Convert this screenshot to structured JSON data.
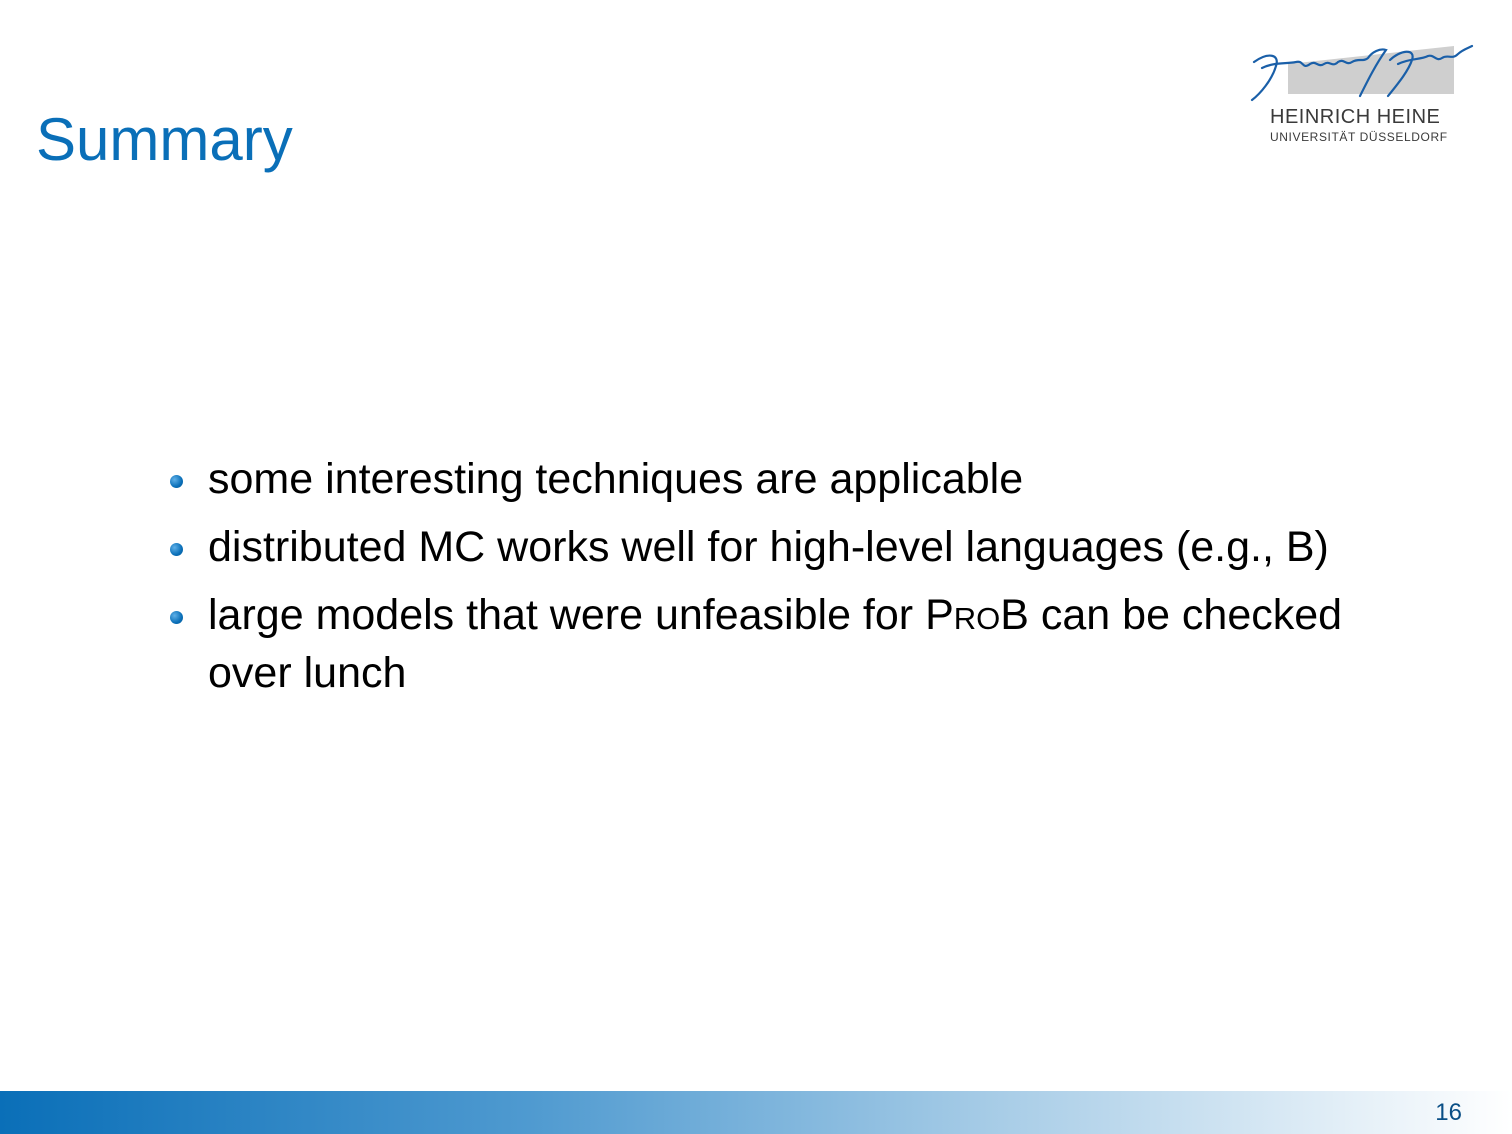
{
  "title": "Summary",
  "logo": {
    "name": "HEINRICH HEINE",
    "university": "UNIVERSITÄT DÜSSELDORF",
    "signature": "Heinrich Heine"
  },
  "bullets": [
    {
      "text": "some interesting techniques are applicable"
    },
    {
      "text": "distributed MC works well for high-level languages (e.g., B)"
    },
    {
      "before": "large models that were unfeasible for ",
      "p": "P",
      "ro": "RO",
      "b": "B",
      "after": " can be checked over lunch"
    }
  ],
  "page_number": "16",
  "colors": {
    "accent": "#0a6fb8",
    "logo_gray": "#cfcfcf"
  }
}
